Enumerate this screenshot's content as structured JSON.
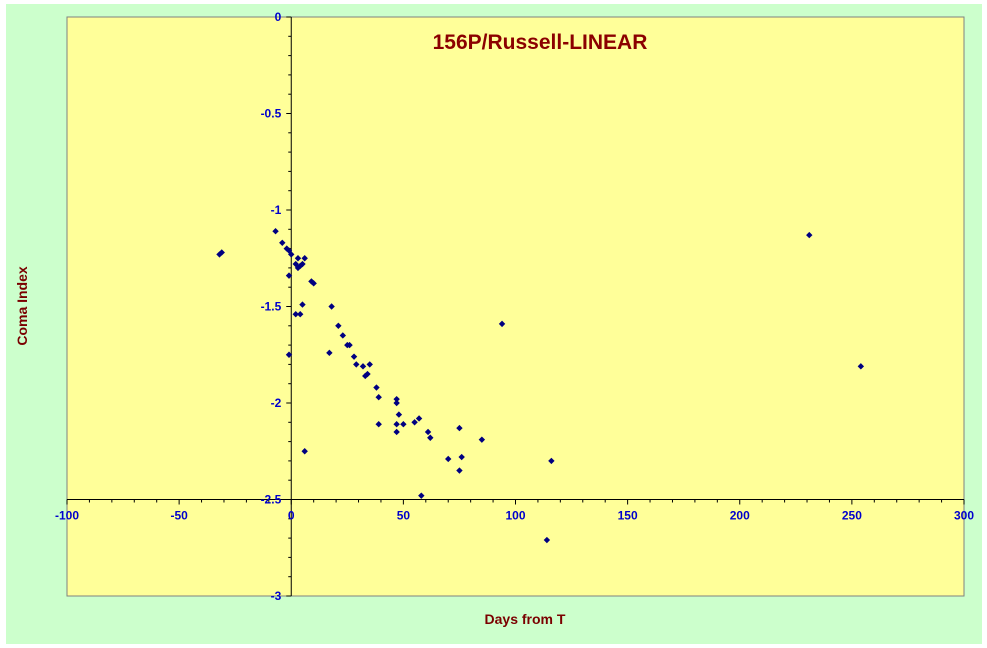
{
  "chart_data": {
    "type": "scatter",
    "title": "156P/Russell-LINEAR",
    "xlabel": "Days from  T",
    "ylabel": "Coma Index",
    "xlim": [
      -100,
      300
    ],
    "ylim": [
      -3,
      0
    ],
    "x_ticks": [
      -100,
      -50,
      0,
      50,
      100,
      150,
      200,
      250,
      300
    ],
    "y_ticks": [
      0,
      -0.5,
      -1,
      -1.5,
      -2,
      -2.5,
      -3
    ],
    "x_tick_labels": [
      "-100",
      "-50",
      "0",
      "50",
      "100",
      "150",
      "200",
      "250",
      "300"
    ],
    "y_tick_labels": [
      "0",
      "-0.5",
      "-1",
      "-1.5",
      "-2",
      "-2.5",
      "-3"
    ],
    "grid": false,
    "legend": "none",
    "colors": {
      "outer_background": "#ccffcc",
      "plot_background": "#ffff99",
      "marker": "#000080",
      "tick_labels": "#0000cc",
      "titles": "#8b0000"
    },
    "series": [
      {
        "points": [
          {
            "x": -32,
            "y": -1.23
          },
          {
            "x": -31,
            "y": -1.22
          },
          {
            "x": -7,
            "y": -1.11
          },
          {
            "x": -4,
            "y": -1.17
          },
          {
            "x": -2,
            "y": -1.2
          },
          {
            "x": -1,
            "y": -1.21
          },
          {
            "x": 0,
            "y": -1.23
          },
          {
            "x": -1,
            "y": -1.34
          },
          {
            "x": -1,
            "y": -1.75
          },
          {
            "x": 2,
            "y": -1.28
          },
          {
            "x": 3,
            "y": -1.3
          },
          {
            "x": 3,
            "y": -1.25
          },
          {
            "x": 4,
            "y": -1.29
          },
          {
            "x": 5,
            "y": -1.28
          },
          {
            "x": 6,
            "y": -1.25
          },
          {
            "x": 5,
            "y": -1.49
          },
          {
            "x": 2,
            "y": -1.54
          },
          {
            "x": 4,
            "y": -1.54
          },
          {
            "x": 6,
            "y": -2.25
          },
          {
            "x": 9,
            "y": -1.37
          },
          {
            "x": 10,
            "y": -1.38
          },
          {
            "x": 17,
            "y": -1.74
          },
          {
            "x": 18,
            "y": -1.5
          },
          {
            "x": 21,
            "y": -1.6
          },
          {
            "x": 23,
            "y": -1.65
          },
          {
            "x": 25,
            "y": -1.7
          },
          {
            "x": 26,
            "y": -1.7
          },
          {
            "x": 28,
            "y": -1.76
          },
          {
            "x": 29,
            "y": -1.8
          },
          {
            "x": 32,
            "y": -1.81
          },
          {
            "x": 33,
            "y": -1.86
          },
          {
            "x": 34,
            "y": -1.85
          },
          {
            "x": 35,
            "y": -1.8
          },
          {
            "x": 38,
            "y": -1.92
          },
          {
            "x": 39,
            "y": -1.97
          },
          {
            "x": 39,
            "y": -2.11
          },
          {
            "x": 47,
            "y": -1.98
          },
          {
            "x": 47,
            "y": -2.0
          },
          {
            "x": 47,
            "y": -2.11
          },
          {
            "x": 47,
            "y": -2.15
          },
          {
            "x": 48,
            "y": -2.06
          },
          {
            "x": 50,
            "y": -2.11
          },
          {
            "x": 55,
            "y": -2.1
          },
          {
            "x": 57,
            "y": -2.08
          },
          {
            "x": 58,
            "y": -2.48
          },
          {
            "x": 61,
            "y": -2.15
          },
          {
            "x": 62,
            "y": -2.18
          },
          {
            "x": 70,
            "y": -2.29
          },
          {
            "x": 75,
            "y": -2.13
          },
          {
            "x": 75,
            "y": -2.35
          },
          {
            "x": 76,
            "y": -2.28
          },
          {
            "x": 85,
            "y": -2.19
          },
          {
            "x": 94,
            "y": -1.59
          },
          {
            "x": 114,
            "y": -2.71
          },
          {
            "x": 116,
            "y": -2.3
          },
          {
            "x": 231,
            "y": -1.13
          },
          {
            "x": 254,
            "y": -1.81
          }
        ]
      }
    ]
  }
}
